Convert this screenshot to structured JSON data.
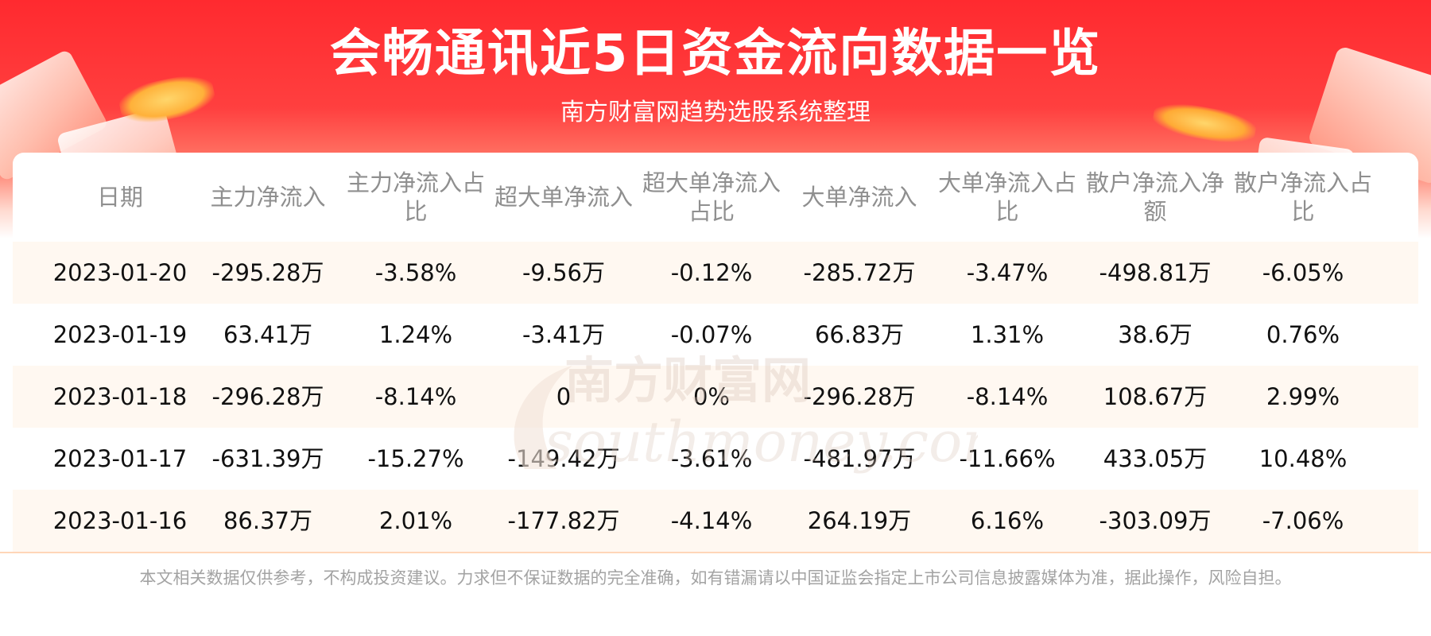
{
  "header": {
    "title": "会畅通讯近5日资金流向数据一览",
    "subtitle": "南方财富网趋势选股系统整理"
  },
  "table": {
    "columns": [
      "日期",
      "主力净流入",
      "主力净流入占比",
      "超大单净流入",
      "超大单净流入占比",
      "大单净流入",
      "大单净流入占比",
      "散户净流入净额",
      "散户净流入占比"
    ],
    "rows": [
      [
        "2023-01-20",
        "-295.28万",
        "-3.58%",
        "-9.56万",
        "-0.12%",
        "-285.72万",
        "-3.47%",
        "-498.81万",
        "-6.05%"
      ],
      [
        "2023-01-19",
        "63.41万",
        "1.24%",
        "-3.41万",
        "-0.07%",
        "66.83万",
        "1.31%",
        "38.6万",
        "0.76%"
      ],
      [
        "2023-01-18",
        "-296.28万",
        "-8.14%",
        "0",
        "0%",
        "-296.28万",
        "-8.14%",
        "108.67万",
        "2.99%"
      ],
      [
        "2023-01-17",
        "-631.39万",
        "-15.27%",
        "-149.42万",
        "-3.61%",
        "-481.97万",
        "-11.66%",
        "433.05万",
        "10.48%"
      ],
      [
        "2023-01-16",
        "86.37万",
        "2.01%",
        "-177.82万",
        "-4.14%",
        "264.19万",
        "6.16%",
        "-303.09万",
        "-7.06%"
      ]
    ]
  },
  "watermark": {
    "cn": "南方财富网",
    "en": "southmoney.com"
  },
  "footer": {
    "disclaimer": "本文相关数据仅供参考，不构成投资建议。力求但不保证数据的完全准确，如有错漏请以中国证监会指定上市公司信息披露媒体为准，据此操作，风险自担。"
  },
  "colors": {
    "banner_red": "#ff2a2f",
    "row_alt": "#fff8f1",
    "header_text": "#8f8f8f",
    "watermark": "#d9c4b8"
  }
}
